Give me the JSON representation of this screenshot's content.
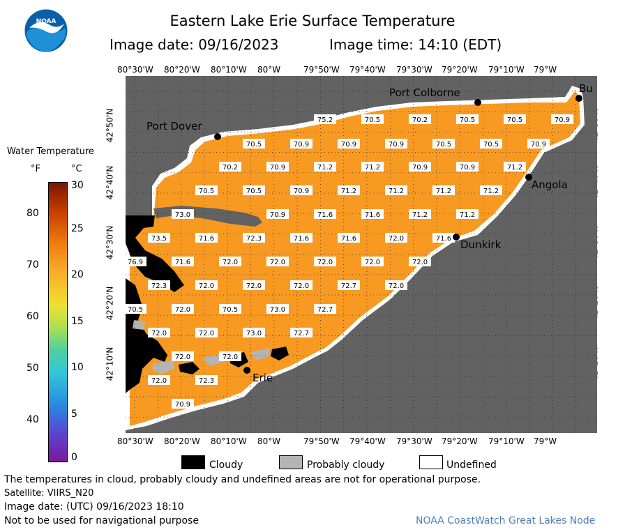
{
  "header": {
    "title": "Eastern Lake Erie Surface Temperature",
    "image_date": "Image date: 09/16/2023",
    "image_time": "Image time: 14:10 (EDT)"
  },
  "logo": {
    "text": "NOAA",
    "colors": {
      "outer": "#0a5fa8",
      "inner": "#1e90d6",
      "bird": "#ffffff"
    }
  },
  "map": {
    "lon_labels": [
      "80°30'W",
      "80°20'W",
      "80°10'W",
      "80°W",
      "79°50'W",
      "79°40'W",
      "79°30'W",
      "79°20'W",
      "79°10'W",
      "79°W"
    ],
    "lat_labels": [
      "42°50'N",
      "42°40'N",
      "42°30'N",
      "42°20'N",
      "42°10'N"
    ],
    "places": [
      "Port Colborne",
      "Bu",
      "Port Dover",
      "Angola",
      "Dunkirk",
      "Erie"
    ],
    "temperature_labels": [
      [
        "75.2",
        "70.5",
        "70.2",
        "70.5",
        "70.5",
        "70.9"
      ],
      [
        "70.5",
        "70.9",
        "70.9",
        "70.9",
        "70.5",
        "70.5",
        "70.9"
      ],
      [
        "70.2",
        "70.9",
        "71.2",
        "71.2",
        "70.9",
        "70.9",
        "71.2"
      ],
      [
        "70.5",
        "70.5",
        "70.9",
        "71.2",
        "71.2",
        "71.2",
        "71.2"
      ],
      [
        "73.0",
        "70.9",
        "71.6",
        "71.6",
        "71.2",
        "71.2"
      ],
      [
        "73.5",
        "71.6",
        "72.3",
        "71.6",
        "71.6",
        "72.0",
        "71.6"
      ],
      [
        "76.9",
        "71.6",
        "72.0",
        "72.0",
        "72.0",
        "72.0",
        "72.0"
      ],
      [
        "72.3",
        "72.0",
        "72.0",
        "72.0",
        "72.7",
        "72.0"
      ],
      [
        "70.5",
        "72.0",
        "70.5",
        "73.0",
        "72.7"
      ],
      [
        "72.0",
        "72.0",
        "73.0",
        "72.7"
      ],
      [
        "72.0",
        "72.0"
      ],
      [
        "72.0",
        "72.3"
      ],
      [
        "70.9"
      ]
    ],
    "colors": {
      "land": "#626262",
      "water": "#f89a22",
      "cloud": "#000000",
      "probably_cloudy": "#b4b4b4",
      "undefined": "#ffffff"
    }
  },
  "legend": {
    "title": "Water Temperature",
    "unit_f": "°F",
    "unit_c": "°C",
    "f_ticks": [
      "80",
      "70",
      "60",
      "50",
      "40"
    ],
    "c_ticks": [
      "30",
      "25",
      "20",
      "15",
      "10",
      "5",
      "0"
    ],
    "range_c": [
      0,
      30
    ]
  },
  "key": {
    "cloudy": "Cloudy",
    "probably_cloudy": "Probably cloudy",
    "undefined": "Undefined"
  },
  "footer": {
    "disclaimer": "The temperatures in cloud, probably cloudy and undefined areas are not for operational purpose.",
    "satellite": "Satellite: VIIRS_N20",
    "image_date_utc": "Image date: (UTC) 09/16/2023  18:10",
    "nav": "Not to be used for navigational purpose",
    "node": "NOAA CoastWatch Great Lakes Node"
  }
}
